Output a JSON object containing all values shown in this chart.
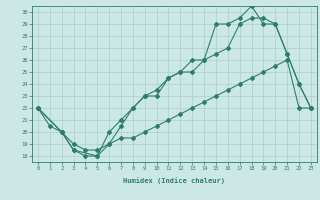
{
  "xlabel": "Humidex (Indice chaleur)",
  "ylabel": "",
  "xlim": [
    -0.5,
    23.5
  ],
  "ylim": [
    17.5,
    30.5
  ],
  "xticks": [
    0,
    1,
    2,
    3,
    4,
    5,
    6,
    7,
    8,
    9,
    10,
    11,
    12,
    13,
    14,
    15,
    16,
    17,
    18,
    19,
    20,
    21,
    22,
    23
  ],
  "yticks": [
    18,
    19,
    20,
    21,
    22,
    23,
    24,
    25,
    26,
    27,
    28,
    29,
    30
  ],
  "color": "#2d7d6e",
  "bg_color": "#cce8e4",
  "grid_color": "#aacfcb",
  "line1_x": [
    0,
    1,
    2,
    3,
    4,
    5,
    6,
    7,
    8,
    9,
    10,
    11,
    12,
    13,
    14,
    15,
    16,
    17,
    18,
    19,
    20,
    21,
    22,
    23
  ],
  "line1_y": [
    22,
    20.5,
    20,
    18.5,
    18,
    18,
    20,
    21,
    22,
    23,
    23,
    24.5,
    25,
    25,
    26,
    29,
    29,
    29.5,
    30.5,
    29,
    29,
    26.5,
    24,
    22
  ],
  "line2_x": [
    0,
    2,
    3,
    5,
    6,
    7,
    8,
    9,
    10,
    11,
    12,
    13,
    14,
    15,
    16,
    17,
    18,
    19,
    20,
    21,
    22,
    23
  ],
  "line2_y": [
    22,
    20,
    18.5,
    18,
    19,
    20.5,
    22,
    23,
    23.5,
    24.5,
    25,
    26,
    26,
    26.5,
    27,
    29,
    29.5,
    29.5,
    29,
    26.5,
    24,
    22
  ],
  "line3_x": [
    0,
    2,
    3,
    4,
    5,
    6,
    7,
    8,
    9,
    10,
    11,
    12,
    13,
    14,
    15,
    16,
    17,
    18,
    19,
    20,
    21,
    22,
    23
  ],
  "line3_y": [
    22,
    20,
    19,
    18.5,
    18.5,
    19,
    19.5,
    19.5,
    20,
    20.5,
    21,
    21.5,
    22,
    22.5,
    23,
    23.5,
    24,
    24.5,
    25,
    25.5,
    26,
    22,
    22
  ],
  "marker": "D",
  "markersize": 2.0,
  "linewidth": 0.8
}
